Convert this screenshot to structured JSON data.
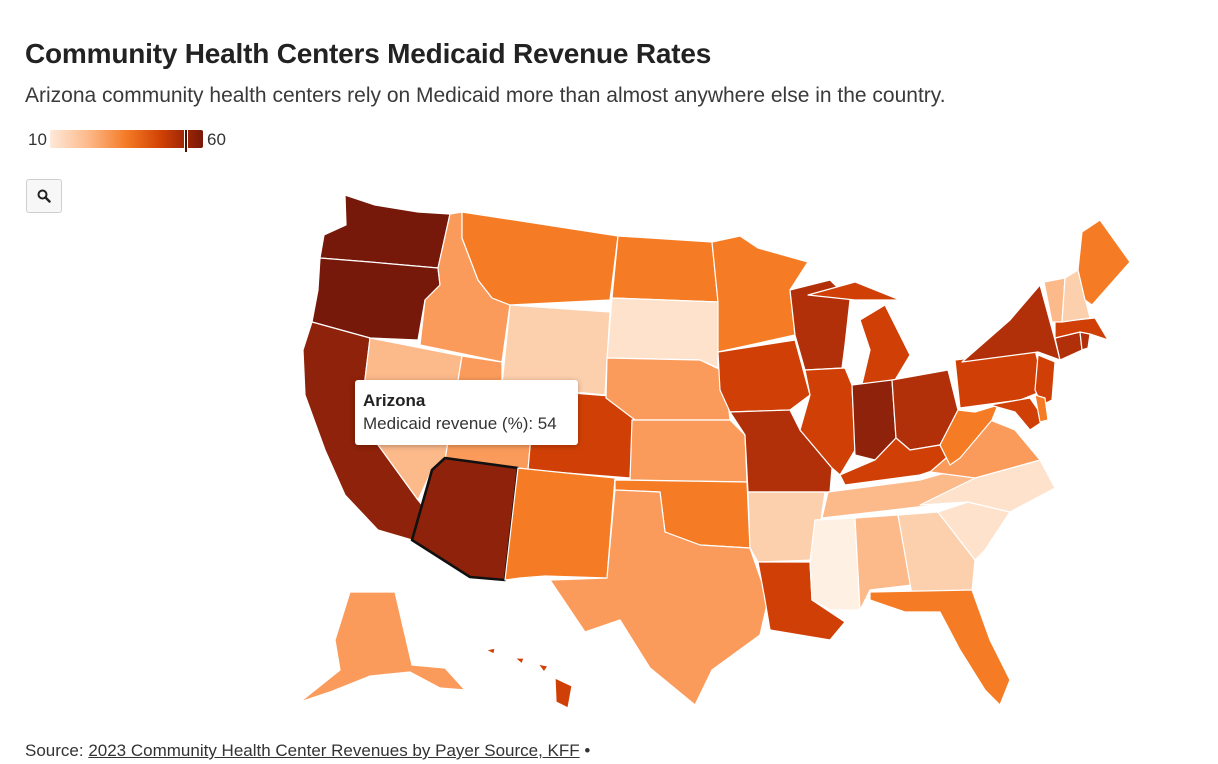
{
  "title": "Community Health Centers Medicaid Revenue Rates",
  "subtitle": "Arizona community health centers rely on Medicaid more than almost anywhere else in the country.",
  "legend": {
    "min": "10",
    "max": "60"
  },
  "zoom": {
    "icon": "magnifier-icon"
  },
  "tooltip": {
    "state": "Arizona",
    "label": "Medicaid revenue (%)",
    "value": "54",
    "text": "Medicaid revenue (%): 54"
  },
  "source": {
    "prefix": "Source: ",
    "link_text": "2023 Community Health Center Revenues by Payer Source, KFF",
    "suffix": " •"
  },
  "colors": {
    "darkest": "#76180a",
    "dark": "#8f220a",
    "red": "#b1300a",
    "orange_dark": "#d04006",
    "orange": "#f57c24",
    "orange_light": "#fb9b5b",
    "peach": "#fcb98a",
    "peach_light": "#fdd0ad",
    "peach_pale": "#fee2cc",
    "palest": "#fff0e4"
  },
  "chart_data": {
    "type": "choropleth",
    "title": "Community Health Centers Medicaid Revenue Rates",
    "metric": "Medicaid revenue (%)",
    "range": [
      10,
      60
    ],
    "states": [
      {
        "name": "Washington",
        "value": 58
      },
      {
        "name": "Oregon",
        "value": 57
      },
      {
        "name": "California",
        "value": 55
      },
      {
        "name": "Arizona",
        "value": 54
      },
      {
        "name": "Nevada",
        "value": 28
      },
      {
        "name": "Idaho",
        "value": 30
      },
      {
        "name": "Utah",
        "value": 30
      },
      {
        "name": "Montana",
        "value": 38
      },
      {
        "name": "Wyoming",
        "value": 22
      },
      {
        "name": "Colorado",
        "value": 45
      },
      {
        "name": "New Mexico",
        "value": 38
      },
      {
        "name": "North Dakota",
        "value": 36
      },
      {
        "name": "South Dakota",
        "value": 18
      },
      {
        "name": "Nebraska",
        "value": 30
      },
      {
        "name": "Kansas",
        "value": 30
      },
      {
        "name": "Oklahoma",
        "value": 38
      },
      {
        "name": "Texas",
        "value": 30
      },
      {
        "name": "Minnesota",
        "value": 40
      },
      {
        "name": "Iowa",
        "value": 45
      },
      {
        "name": "Missouri",
        "value": 50
      },
      {
        "name": "Arkansas",
        "value": 22
      },
      {
        "name": "Louisiana",
        "value": 45
      },
      {
        "name": "Wisconsin",
        "value": 48
      },
      {
        "name": "Illinois",
        "value": 46
      },
      {
        "name": "Michigan",
        "value": 45
      },
      {
        "name": "Indiana",
        "value": 56
      },
      {
        "name": "Ohio",
        "value": 48
      },
      {
        "name": "Kentucky",
        "value": 46
      },
      {
        "name": "Tennessee",
        "value": 25
      },
      {
        "name": "Mississippi",
        "value": 12
      },
      {
        "name": "Alabama",
        "value": 24
      },
      {
        "name": "Georgia",
        "value": 20
      },
      {
        "name": "Florida",
        "value": 36
      },
      {
        "name": "South Carolina",
        "value": 18
      },
      {
        "name": "North Carolina",
        "value": 18
      },
      {
        "name": "Virginia",
        "value": 30
      },
      {
        "name": "West Virginia",
        "value": 36
      },
      {
        "name": "Pennsylvania",
        "value": 46
      },
      {
        "name": "New York",
        "value": 50
      },
      {
        "name": "Vermont",
        "value": 26
      },
      {
        "name": "New Hampshire",
        "value": 22
      },
      {
        "name": "Maine",
        "value": 36
      },
      {
        "name": "Massachusetts",
        "value": 44
      },
      {
        "name": "Rhode Island",
        "value": 52
      },
      {
        "name": "Connecticut",
        "value": 50
      },
      {
        "name": "New Jersey",
        "value": 46
      },
      {
        "name": "Delaware",
        "value": 36
      },
      {
        "name": "Maryland",
        "value": 45
      },
      {
        "name": "Alaska",
        "value": 30
      },
      {
        "name": "Hawaii",
        "value": 46
      }
    ]
  }
}
